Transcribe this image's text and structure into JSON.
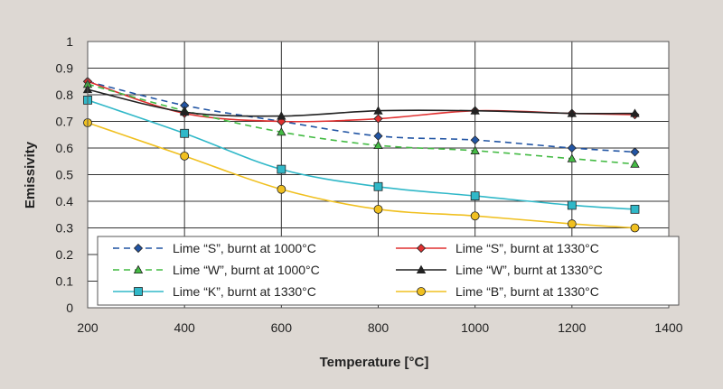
{
  "chart_data": {
    "type": "line",
    "title": "",
    "xlabel": "Temperature [°C]",
    "ylabel": "Emissivity",
    "xlim": [
      200,
      1400
    ],
    "ylim": [
      0,
      1
    ],
    "x_ticks": [
      200,
      400,
      600,
      800,
      1000,
      1200,
      1400
    ],
    "x_tick_labels": [
      "200",
      "400",
      "600",
      "800",
      "1000",
      "1200",
      "1400"
    ],
    "y_ticks": [
      0,
      0.1,
      0.2,
      0.3,
      0.4,
      0.5,
      0.6,
      0.7,
      0.8,
      0.9,
      1
    ],
    "y_tick_labels": [
      "0",
      "0.1",
      "0.2",
      "0.3",
      "0.4",
      "0.5",
      "0.6",
      "0.7",
      "0.8",
      "0.9",
      "1"
    ],
    "grid": true,
    "legend_position": "lower-center",
    "series": [
      {
        "name": "Lime “S”, burnt at 1000°C",
        "color": "#2255a4",
        "dash": "dashed",
        "marker": "diamond",
        "x": [
          200,
          400,
          600,
          800,
          1000,
          1200,
          1330
        ],
        "y": [
          0.85,
          0.76,
          0.7,
          0.645,
          0.63,
          0.6,
          0.585
        ]
      },
      {
        "name": "Lime “S”, burnt at 1330°C",
        "color": "#e03030",
        "dash": "solid",
        "marker": "diamond",
        "x": [
          200,
          400,
          600,
          800,
          1000,
          1200,
          1330
        ],
        "y": [
          0.85,
          0.73,
          0.7,
          0.71,
          0.74,
          0.73,
          0.725
        ]
      },
      {
        "name": "Lime “W”, burnt at 1000°C",
        "color": "#44bb44",
        "dash": "dashed",
        "marker": "triangle",
        "x": [
          200,
          400,
          600,
          800,
          1000,
          1200,
          1330
        ],
        "y": [
          0.84,
          0.74,
          0.66,
          0.61,
          0.59,
          0.56,
          0.54
        ]
      },
      {
        "name": "Lime “W”, burnt at 1330°C",
        "color": "#222222",
        "dash": "solid",
        "marker": "triangle",
        "x": [
          200,
          400,
          600,
          800,
          1000,
          1200,
          1330
        ],
        "y": [
          0.82,
          0.735,
          0.72,
          0.74,
          0.74,
          0.73,
          0.73
        ]
      },
      {
        "name": "Lime “K”, burnt at 1330°C",
        "color": "#30b8c8",
        "dash": "solid",
        "marker": "square",
        "x": [
          200,
          400,
          600,
          800,
          1000,
          1200,
          1330
        ],
        "y": [
          0.78,
          0.655,
          0.52,
          0.455,
          0.42,
          0.385,
          0.37
        ]
      },
      {
        "name": "Lime “B”, burnt at 1330°C",
        "color": "#f0c020",
        "dash": "solid",
        "marker": "circle",
        "x": [
          200,
          400,
          600,
          800,
          1000,
          1200,
          1330
        ],
        "y": [
          0.695,
          0.57,
          0.445,
          0.37,
          0.345,
          0.315,
          0.3
        ]
      }
    ]
  }
}
